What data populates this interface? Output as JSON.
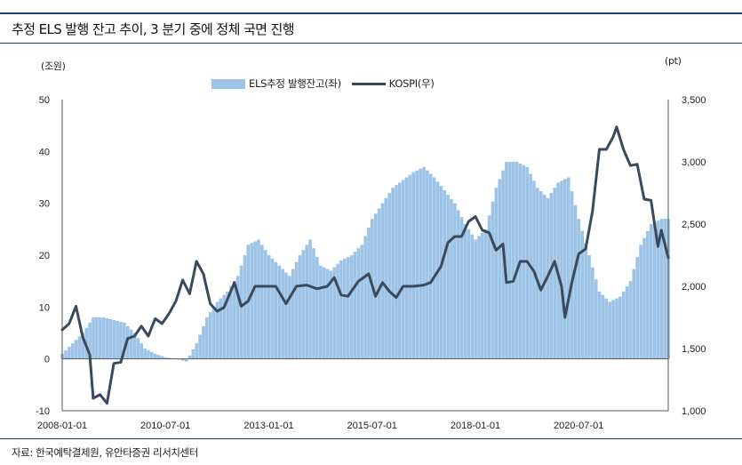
{
  "title": "추정 ELS 발행 잔고 추이, 3 분기 중에 정체 국면 진행",
  "source": "자료: 한국예탁결제원, 유안타증권 리서치센터",
  "colors": {
    "bar": "#9dc3e6",
    "line": "#3a4a5c",
    "rule": "#1f3f6e",
    "axis": "#555555"
  },
  "chart_data": {
    "type": "bar",
    "title": "",
    "y_left_unit": "(조원)",
    "y_right_unit": "(pt)",
    "legend": [
      "ELS추정 발행잔고(좌)",
      "KOSPI(우)"
    ],
    "x_ticks": [
      "2008-01-01",
      "2010-07-01",
      "2013-01-01",
      "2015-07-01",
      "2018-01-01",
      "2020-07-01"
    ],
    "y_left_ticks": [
      "50",
      "40",
      "30",
      "20",
      "10",
      "0",
      "-10"
    ],
    "y_right_ticks": [
      "3,500",
      "3,000",
      "2,500",
      "2,000",
      "1,500",
      "1,000"
    ],
    "y_left_range": [
      -10,
      50
    ],
    "y_right_range": [
      1000,
      3500
    ],
    "x_range": [
      "2008-01",
      "2022-09"
    ],
    "grid": false,
    "legend_position": "top",
    "series": [
      {
        "name": "ELS추정 발행잔고(좌)",
        "axis": "left",
        "kind": "area",
        "points": [
          [
            "2008-01",
            1
          ],
          [
            "2008-07",
            5
          ],
          [
            "2008-10",
            8
          ],
          [
            "2009-01",
            8
          ],
          [
            "2009-04",
            7.5
          ],
          [
            "2009-07",
            7
          ],
          [
            "2009-10",
            5
          ],
          [
            "2010-01",
            2
          ],
          [
            "2010-04",
            1
          ],
          [
            "2010-07",
            0.3
          ],
          [
            "2010-10",
            0
          ],
          [
            "2011-01",
            -0.5
          ],
          [
            "2011-04",
            3
          ],
          [
            "2011-07",
            8
          ],
          [
            "2011-10",
            11
          ],
          [
            "2012-01",
            13
          ],
          [
            "2012-04",
            16
          ],
          [
            "2012-07",
            22
          ],
          [
            "2012-10",
            23
          ],
          [
            "2013-01",
            20
          ],
          [
            "2013-04",
            18
          ],
          [
            "2013-07",
            16
          ],
          [
            "2013-10",
            20
          ],
          [
            "2014-01",
            23
          ],
          [
            "2014-04",
            18
          ],
          [
            "2014-07",
            17
          ],
          [
            "2014-10",
            19
          ],
          [
            "2015-01",
            20
          ],
          [
            "2015-04",
            22
          ],
          [
            "2015-07",
            27
          ],
          [
            "2015-10",
            30
          ],
          [
            "2016-01",
            33
          ],
          [
            "2016-07",
            36
          ],
          [
            "2016-10",
            37
          ],
          [
            "2017-01",
            35
          ],
          [
            "2017-07",
            30
          ],
          [
            "2017-10",
            26
          ],
          [
            "2018-01",
            23
          ],
          [
            "2018-04",
            25
          ],
          [
            "2018-07",
            33
          ],
          [
            "2018-10",
            38
          ],
          [
            "2019-01",
            38
          ],
          [
            "2019-04",
            37
          ],
          [
            "2019-07",
            33
          ],
          [
            "2019-10",
            31
          ],
          [
            "2020-01",
            34
          ],
          [
            "2020-04",
            35
          ],
          [
            "2020-07",
            27
          ],
          [
            "2020-10",
            20
          ],
          [
            "2021-01",
            13
          ],
          [
            "2021-04",
            11
          ],
          [
            "2021-07",
            12
          ],
          [
            "2021-10",
            15
          ],
          [
            "2022-01",
            22
          ],
          [
            "2022-04",
            26
          ],
          [
            "2022-07",
            27
          ],
          [
            "2022-09",
            27
          ]
        ]
      },
      {
        "name": "KOSPI(우)",
        "axis": "right",
        "kind": "line",
        "points": [
          [
            "2008-01",
            1650
          ],
          [
            "2008-03",
            1700
          ],
          [
            "2008-05",
            1840
          ],
          [
            "2008-07",
            1590
          ],
          [
            "2008-09",
            1450
          ],
          [
            "2008-10",
            1100
          ],
          [
            "2008-12",
            1130
          ],
          [
            "2009-02",
            1060
          ],
          [
            "2009-04",
            1380
          ],
          [
            "2009-06",
            1390
          ],
          [
            "2009-08",
            1580
          ],
          [
            "2009-10",
            1600
          ],
          [
            "2009-12",
            1680
          ],
          [
            "2010-02",
            1600
          ],
          [
            "2010-04",
            1740
          ],
          [
            "2010-06",
            1700
          ],
          [
            "2010-08",
            1780
          ],
          [
            "2010-10",
            1880
          ],
          [
            "2010-12",
            2050
          ],
          [
            "2011-02",
            1940
          ],
          [
            "2011-04",
            2200
          ],
          [
            "2011-06",
            2100
          ],
          [
            "2011-08",
            1860
          ],
          [
            "2011-10",
            1800
          ],
          [
            "2011-12",
            1830
          ],
          [
            "2012-03",
            2030
          ],
          [
            "2012-05",
            1840
          ],
          [
            "2012-07",
            1880
          ],
          [
            "2012-09",
            2000
          ],
          [
            "2012-12",
            2000
          ],
          [
            "2013-03",
            2000
          ],
          [
            "2013-06",
            1860
          ],
          [
            "2013-09",
            2000
          ],
          [
            "2013-12",
            2010
          ],
          [
            "2014-03",
            1980
          ],
          [
            "2014-06",
            2000
          ],
          [
            "2014-08",
            2070
          ],
          [
            "2014-10",
            1930
          ],
          [
            "2014-12",
            1920
          ],
          [
            "2015-03",
            2040
          ],
          [
            "2015-06",
            2100
          ],
          [
            "2015-08",
            1920
          ],
          [
            "2015-10",
            2030
          ],
          [
            "2015-12",
            1960
          ],
          [
            "2016-02",
            1910
          ],
          [
            "2016-04",
            2000
          ],
          [
            "2016-07",
            2000
          ],
          [
            "2016-10",
            2010
          ],
          [
            "2016-12",
            2030
          ],
          [
            "2017-03",
            2160
          ],
          [
            "2017-05",
            2350
          ],
          [
            "2017-07",
            2400
          ],
          [
            "2017-09",
            2400
          ],
          [
            "2017-11",
            2520
          ],
          [
            "2018-01",
            2560
          ],
          [
            "2018-03",
            2450
          ],
          [
            "2018-05",
            2430
          ],
          [
            "2018-07",
            2290
          ],
          [
            "2018-09",
            2340
          ],
          [
            "2018-10",
            2030
          ],
          [
            "2018-12",
            2040
          ],
          [
            "2019-02",
            2200
          ],
          [
            "2019-04",
            2200
          ],
          [
            "2019-06",
            2120
          ],
          [
            "2019-08",
            1970
          ],
          [
            "2019-10",
            2080
          ],
          [
            "2019-12",
            2200
          ],
          [
            "2020-02",
            2000
          ],
          [
            "2020-03",
            1750
          ],
          [
            "2020-05",
            2030
          ],
          [
            "2020-07",
            2260
          ],
          [
            "2020-09",
            2300
          ],
          [
            "2020-11",
            2600
          ],
          [
            "2021-01",
            3100
          ],
          [
            "2021-03",
            3100
          ],
          [
            "2021-05",
            3200
          ],
          [
            "2021-06",
            3280
          ],
          [
            "2021-08",
            3100
          ],
          [
            "2021-10",
            2970
          ],
          [
            "2021-12",
            2980
          ],
          [
            "2022-02",
            2700
          ],
          [
            "2022-04",
            2690
          ],
          [
            "2022-06",
            2320
          ],
          [
            "2022-07",
            2450
          ],
          [
            "2022-09",
            2230
          ]
        ]
      }
    ]
  }
}
